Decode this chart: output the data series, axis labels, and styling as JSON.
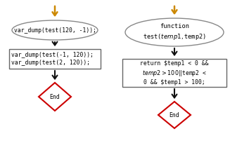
{
  "bg_color": "#ffffff",
  "arrow_color_left": "#cc8800",
  "arrow_color_right": "#cc8800",
  "dark_arrow_color": "#111111",
  "oval_fill": "#ffffff",
  "oval_edge": "#888888",
  "rect_fill": "#ffffff",
  "rect_edge": "#666666",
  "diamond_fill": "#ffffff",
  "diamond_edge": "#cc0000",
  "left_oval_text": "var_dump(test(120, -1));",
  "left_rect_line1": "var_dump(test(-1, 120));",
  "left_rect_line2": "var_dump(test(2, 120));",
  "left_diamond_text": "End",
  "right_oval_line1": "function",
  "right_oval_line2": "test($temp1, $temp2)",
  "right_rect_line1": "return $temp1 < 0 &&",
  "right_rect_line2": "$temp2 > 100 || $temp2 <",
  "right_rect_line3": "0 && $temp1 > 100;",
  "right_diamond_text": "End",
  "font_size": 5.8,
  "font_size_oval_right": 6.2,
  "font_family": "DejaVu Sans Mono"
}
